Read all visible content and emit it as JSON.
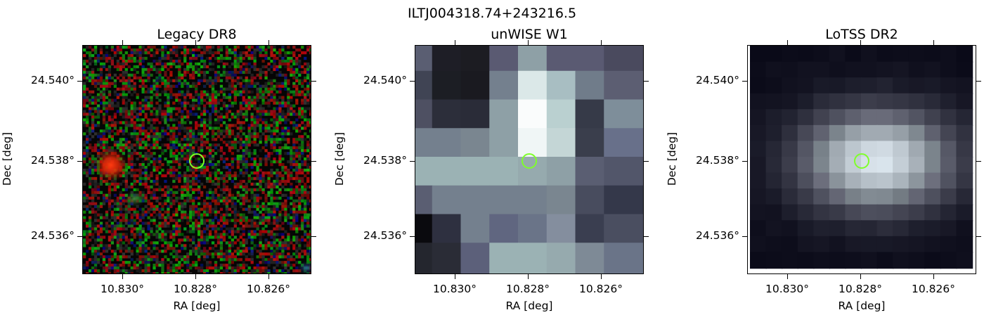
{
  "suptitle": "ILTJ004318.74+243216.5",
  "xlabel": "RA [deg]",
  "ylabel": "Dec [deg]",
  "xticks": [
    "10.830°",
    "10.828°",
    "10.826°"
  ],
  "yticks": [
    "24.540°",
    "24.538°",
    "24.536°"
  ],
  "panels": [
    {
      "title": "Legacy DR8",
      "image": "rgb-noise-optical"
    },
    {
      "title": "unWISE W1",
      "image": "grayscale-coarse-infrared"
    },
    {
      "title": "LoTSS DR2",
      "image": "grayscale-radio-blob"
    }
  ],
  "marker": {
    "shape": "circle",
    "color": "#7fff2a"
  },
  "colors": {
    "marker": "#7fff2a"
  }
}
